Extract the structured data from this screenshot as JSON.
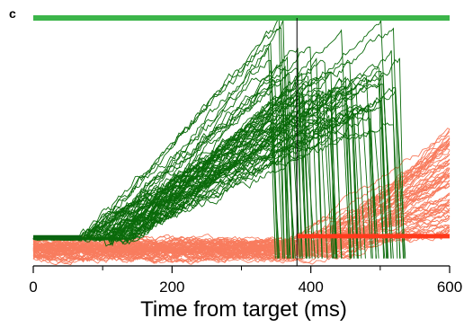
{
  "chart_data": {
    "type": "line",
    "panel_label": "c",
    "title": "",
    "xlabel": "Time from target (ms)",
    "ylabel": "",
    "xlim": [
      0,
      600
    ],
    "ylim": [
      0,
      1
    ],
    "x_ticks": [
      0,
      200,
      400,
      600
    ],
    "x_tick_labels": [
      "0",
      "200",
      "400",
      "600"
    ],
    "x_minor_ticks": [
      100,
      300,
      500
    ],
    "grid": false,
    "legend": "none",
    "annotations": {
      "vertical_line_x": 380,
      "top_bar": {
        "x_start": 0,
        "x_end": 600,
        "y": 1.0,
        "color": "#3cb54a"
      },
      "green_baseline": {
        "x_start": 0,
        "x_end": 70,
        "y": 0.115,
        "color": "#0a6410"
      },
      "red_baseline": {
        "x_start": 380,
        "x_end": 600,
        "y": 0.12,
        "color": "#ff3a1c"
      }
    },
    "series": [
      {
        "color": "#0a6a0a",
        "trial_count": 70,
        "onset_range_ms": [
          60,
          150
        ],
        "start_level": 0.11,
        "peak_level_range": [
          0.56,
          0.99
        ],
        "peak_time_range_ms": [
          340,
          530
        ],
        "return_level": 0.03
      },
      {
        "color": "#f87c5e",
        "trial_count": 70,
        "baseline_level_range": [
          0.03,
          0.1
        ],
        "ramp_onset_range_ms": [
          350,
          460
        ],
        "end_level_range": [
          0.12,
          0.56
        ]
      }
    ]
  }
}
